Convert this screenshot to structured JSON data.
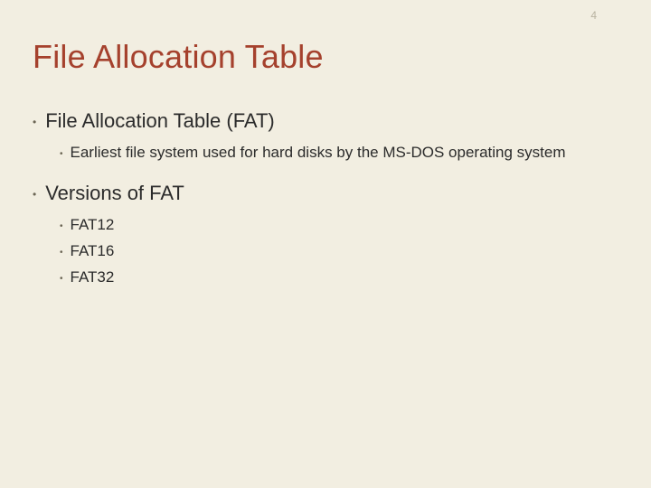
{
  "page_number": "4",
  "title": "File Allocation Table",
  "colors": {
    "background": "#f2eee1",
    "title_color": "#a5412d",
    "body_text": "#2b2b2b",
    "bullet_dot": "#6b6554",
    "page_number_color": "#b8b2a0"
  },
  "typography": {
    "title_fontsize": 36,
    "l1_fontsize": 22,
    "l2_fontsize": 17,
    "font_family": "Arial"
  },
  "bullets": [
    {
      "level": 1,
      "text": "File Allocation Table (FAT)",
      "children": [
        {
          "level": 2,
          "text": "Earliest file system used for hard disks by the MS-DOS operating system"
        }
      ]
    },
    {
      "level": 1,
      "text": "Versions of FAT",
      "children": [
        {
          "level": 2,
          "text": "FAT12"
        },
        {
          "level": 2,
          "text": "FAT16"
        },
        {
          "level": 2,
          "text": "FAT32"
        }
      ]
    }
  ]
}
